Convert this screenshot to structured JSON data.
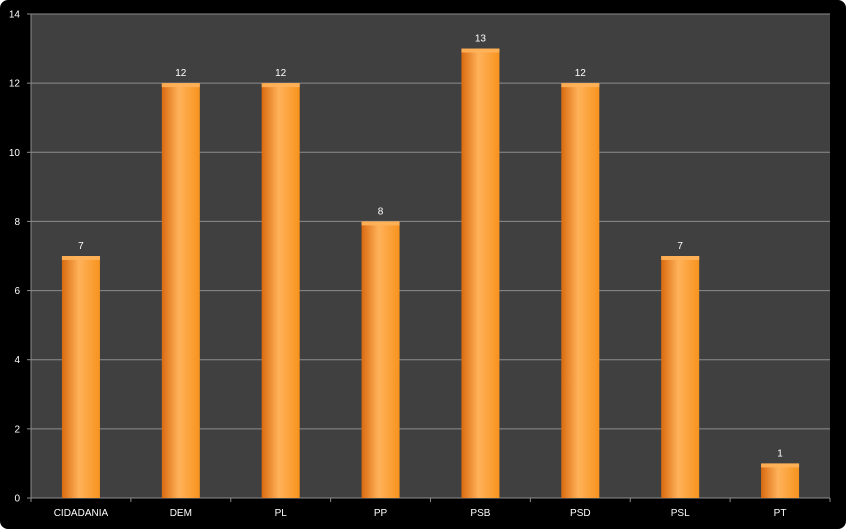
{
  "chart_data": {
    "type": "bar",
    "categories": [
      "CIDADANIA",
      "DEM",
      "PL",
      "PP",
      "PSB",
      "PSD",
      "PSL",
      "PT"
    ],
    "values": [
      7,
      12,
      12,
      8,
      13,
      12,
      7,
      1
    ],
    "ylim": [
      0,
      14
    ],
    "yticks": [
      0,
      2,
      4,
      6,
      8,
      10,
      12,
      14
    ],
    "grid": true,
    "colors": {
      "bar": "#F7931E",
      "bar_light": "#FFB25A",
      "bar_dark": "#D96A10",
      "plot_bg": "#404040",
      "frame_bg": "#000000",
      "grid": "#8C8C8C",
      "text": "#FFFFFF"
    }
  }
}
